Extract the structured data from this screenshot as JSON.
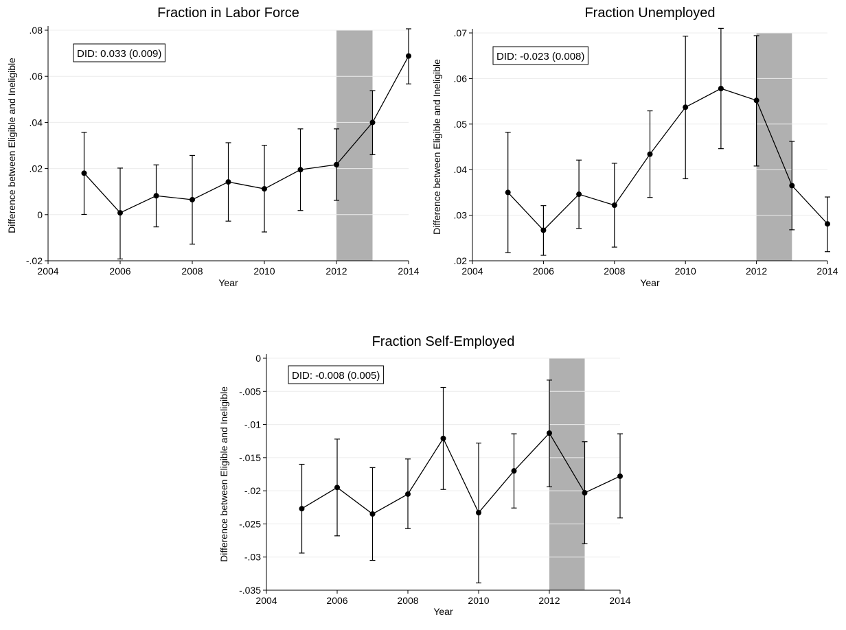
{
  "chart_data": [
    {
      "type": "line",
      "title": "Fraction in Labor Force",
      "xlabel": "Year",
      "ylabel": "Difference between Eligible and Ineligible",
      "xlim": [
        2004,
        2014
      ],
      "ylim": [
        -0.02,
        0.08
      ],
      "x_ticks": [
        2004,
        2006,
        2008,
        2010,
        2012,
        2014
      ],
      "x_tick_labels": [
        "2004",
        "2006",
        "2008",
        "2010",
        "2012",
        "2014"
      ],
      "y_ticks": [
        -0.02,
        0,
        0.02,
        0.04,
        0.06,
        0.08
      ],
      "y_tick_labels": [
        "-.02",
        "0",
        ".02",
        ".04",
        ".06",
        ".08"
      ],
      "grid": true,
      "shaded_region": [
        2012,
        2013
      ],
      "annotation": "DID: 0.033 (0.009)",
      "series": [
        {
          "x": [
            2005,
            2006,
            2007,
            2008,
            2009,
            2010,
            2011,
            2012,
            2013,
            2014
          ],
          "y": [
            0.018,
            0.0008,
            0.0082,
            0.0065,
            0.0142,
            0.0112,
            0.0195,
            0.0217,
            0.04,
            0.0688
          ],
          "ci_low": [
            0.0001,
            -0.0192,
            -0.0053,
            -0.0128,
            -0.0028,
            -0.0075,
            0.0018,
            0.0062,
            0.026,
            0.0567
          ],
          "ci_high": [
            0.0357,
            0.0202,
            0.0216,
            0.0257,
            0.0312,
            0.0301,
            0.0372,
            0.0372,
            0.0538,
            0.0806
          ]
        }
      ]
    },
    {
      "type": "line",
      "title": "Fraction Unemployed",
      "xlabel": "Year",
      "ylabel": "Difference between Eligible and Ineligible",
      "xlim": [
        2004,
        2014
      ],
      "ylim": [
        0.02,
        0.07
      ],
      "x_ticks": [
        2004,
        2006,
        2008,
        2010,
        2012,
        2014
      ],
      "x_tick_labels": [
        "2004",
        "2006",
        "2008",
        "2010",
        "2012",
        "2014"
      ],
      "y_ticks": [
        0.02,
        0.03,
        0.04,
        0.05,
        0.06,
        0.07
      ],
      "y_tick_labels": [
        ".02",
        ".03",
        ".04",
        ".05",
        ".06",
        ".07"
      ],
      "grid": true,
      "shaded_region": [
        2012,
        2013
      ],
      "annotation": "DID: -0.023 (0.008)",
      "series": [
        {
          "x": [
            2005,
            2006,
            2007,
            2008,
            2009,
            2010,
            2011,
            2012,
            2013,
            2014
          ],
          "y": [
            0.035,
            0.0267,
            0.0346,
            0.0322,
            0.0434,
            0.0537,
            0.0578,
            0.0552,
            0.0365,
            0.0281
          ],
          "ci_low": [
            0.0218,
            0.0212,
            0.0271,
            0.023,
            0.0339,
            0.038,
            0.0446,
            0.0408,
            0.0268,
            0.022
          ],
          "ci_high": [
            0.0482,
            0.0321,
            0.0421,
            0.0414,
            0.0529,
            0.0693,
            0.071,
            0.0694,
            0.0462,
            0.034
          ]
        }
      ]
    },
    {
      "type": "line",
      "title": "Fraction Self-Employed",
      "xlabel": "Year",
      "ylabel": "Difference between Eligible and Ineligible",
      "xlim": [
        2004,
        2014
      ],
      "ylim": [
        -0.035,
        0
      ],
      "x_ticks": [
        2004,
        2006,
        2008,
        2010,
        2012,
        2014
      ],
      "x_tick_labels": [
        "2004",
        "2006",
        "2008",
        "2010",
        "2012",
        "2014"
      ],
      "y_ticks": [
        -0.035,
        -0.03,
        -0.025,
        -0.02,
        -0.015,
        -0.01,
        -0.005,
        0
      ],
      "y_tick_labels": [
        "-.035",
        "-.03",
        "-.025",
        "-.02",
        "-.015",
        "-.01",
        "-.005",
        "0"
      ],
      "grid": true,
      "shaded_region": [
        2012,
        2013
      ],
      "annotation": "DID: -0.008 (0.005)",
      "series": [
        {
          "x": [
            2005,
            2006,
            2007,
            2008,
            2009,
            2010,
            2011,
            2012,
            2013,
            2014
          ],
          "y": [
            -0.0227,
            -0.0195,
            -0.0235,
            -0.0205,
            -0.0121,
            -0.0233,
            -0.017,
            -0.0113,
            -0.0203,
            -0.0178
          ],
          "ci_low": [
            -0.0294,
            -0.0268,
            -0.0305,
            -0.0257,
            -0.0198,
            -0.0339,
            -0.0226,
            -0.0194,
            -0.028,
            -0.0241
          ],
          "ci_high": [
            -0.016,
            -0.0122,
            -0.0165,
            -0.0152,
            -0.0044,
            -0.0128,
            -0.0114,
            -0.0033,
            -0.0126,
            -0.0114
          ]
        }
      ]
    }
  ]
}
